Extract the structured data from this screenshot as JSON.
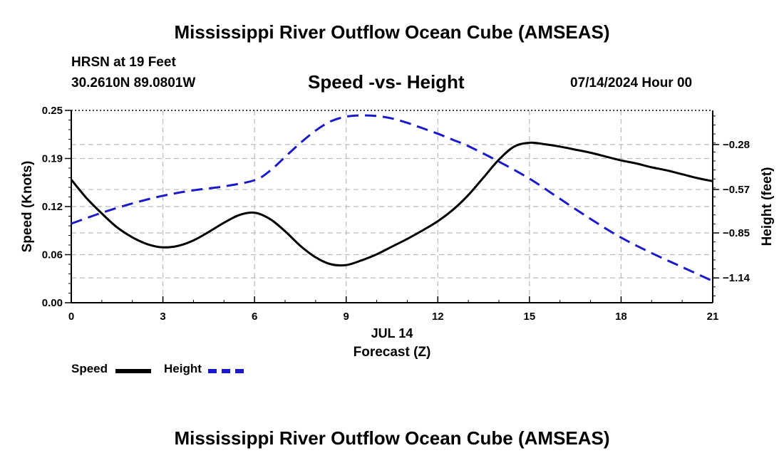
{
  "header": {
    "title": "Mississippi River Outflow Ocean Cube (AMSEAS)",
    "station": "HRSN at 19 Feet",
    "coords": "30.2610N  89.0801W",
    "subtitle": "Speed -vs- Height",
    "datetime": "07/14/2024 Hour 00"
  },
  "footer": {
    "title": "Mississippi River Outflow Ocean Cube (AMSEAS)"
  },
  "legend": {
    "speed": "Speed",
    "height": "Height"
  },
  "colors": {
    "speed": "#000000",
    "height": "#1a1acc",
    "grid": "#bbbbbb"
  },
  "chart_data": {
    "type": "line",
    "xlabel": "Forecast (Z)",
    "date_label": "JUL 14",
    "ylabel_left": "Speed (Knots)",
    "ylabel_right": "Height (feet)",
    "xlim": [
      0,
      21
    ],
    "x_ticks": [
      0,
      3,
      6,
      9,
      12,
      15,
      18,
      21
    ],
    "x_tick_labels": [
      "0",
      "3",
      "6",
      "9",
      "12",
      "15",
      "18",
      "21"
    ],
    "ylim_left": [
      0,
      0.25
    ],
    "y_ticks_left": [
      0,
      0.0625,
      0.125,
      0.1875,
      0.25
    ],
    "y_tick_labels_left": [
      "0.00",
      "0.06",
      "0.12",
      "0.19",
      "0.25"
    ],
    "ylim_right": [
      -1.3,
      -0.06
    ],
    "y_ticks_right": [
      -1.14,
      -0.85,
      -0.57,
      -0.28
    ],
    "y_tick_labels_right": [
      "−1.14",
      "−0.85",
      "−0.57",
      "−0.28"
    ],
    "series": [
      {
        "name": "Speed",
        "axis": "left",
        "style": "solid",
        "x": [
          0,
          0.5,
          1,
          1.5,
          2,
          2.5,
          3,
          3.5,
          4,
          4.5,
          5,
          5.5,
          6,
          6.5,
          7,
          7.5,
          8,
          8.5,
          9,
          9.5,
          10,
          10.5,
          11,
          11.5,
          12,
          12.5,
          13,
          13.5,
          14,
          14.5,
          15,
          15.5,
          16,
          16.5,
          17,
          17.5,
          18,
          18.5,
          19,
          19.5,
          20,
          20.5,
          21
        ],
        "values": [
          0.16,
          0.136,
          0.116,
          0.098,
          0.085,
          0.076,
          0.072,
          0.074,
          0.081,
          0.092,
          0.104,
          0.114,
          0.117,
          0.109,
          0.093,
          0.074,
          0.059,
          0.05,
          0.049,
          0.055,
          0.063,
          0.073,
          0.083,
          0.094,
          0.106,
          0.121,
          0.14,
          0.163,
          0.186,
          0.203,
          0.208,
          0.206,
          0.203,
          0.199,
          0.195,
          0.19,
          0.185,
          0.181,
          0.176,
          0.172,
          0.167,
          0.162,
          0.158
        ]
      },
      {
        "name": "Height",
        "axis": "right",
        "style": "dashed",
        "x": [
          0,
          1,
          2,
          3,
          4,
          5,
          6,
          6.5,
          7,
          7.5,
          8,
          8.5,
          9,
          9.5,
          10,
          10.5,
          11,
          11.5,
          12,
          12.5,
          13,
          14,
          15,
          16,
          17,
          18,
          19,
          20,
          21
        ],
        "values": [
          -0.79,
          -0.72,
          -0.66,
          -0.61,
          -0.575,
          -0.55,
          -0.51,
          -0.45,
          -0.36,
          -0.27,
          -0.19,
          -0.13,
          -0.1,
          -0.092,
          -0.096,
          -0.112,
          -0.14,
          -0.175,
          -0.21,
          -0.25,
          -0.29,
          -0.39,
          -0.5,
          -0.63,
          -0.76,
          -0.88,
          -0.98,
          -1.07,
          -1.16
        ]
      }
    ]
  }
}
